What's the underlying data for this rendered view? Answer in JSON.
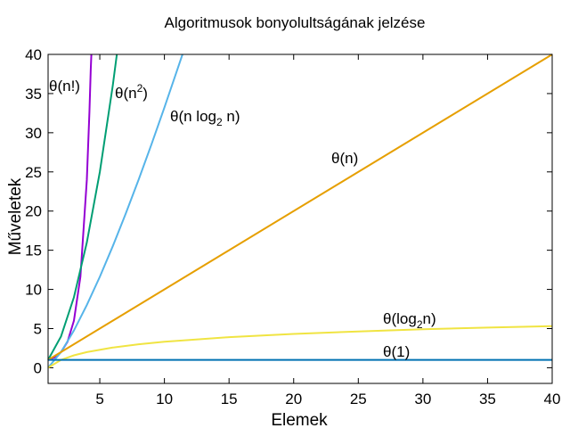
{
  "chart_data": {
    "type": "line",
    "title": "Algoritmusok bonyolultságának jelzése",
    "xlabel": "Elemek",
    "ylabel": "Műveletek",
    "xlim": [
      1,
      40
    ],
    "ylim": [
      -2,
      40
    ],
    "x_ticks": [
      5,
      10,
      15,
      20,
      25,
      30,
      35,
      40
    ],
    "y_ticks": [
      0,
      5,
      10,
      15,
      20,
      25,
      30,
      35,
      40
    ],
    "grid": false,
    "legend": "none",
    "series": [
      {
        "function": "factorial",
        "color": "#9400d3",
        "label": {
          "pre": "θ(n!)"
        },
        "points": [
          [
            1,
            1
          ],
          [
            1.5,
            1.33
          ],
          [
            2,
            2
          ],
          [
            2.5,
            3.32
          ],
          [
            3,
            6
          ],
          [
            3.5,
            11.63
          ],
          [
            4,
            24
          ],
          [
            4.2,
            32.6
          ],
          [
            4.3,
            38.1
          ],
          [
            4.35,
            40
          ]
        ]
      },
      {
        "function": "n^2",
        "color": "#009e73",
        "label": {
          "pre": "θ(n",
          "sup": "2",
          "post": ")"
        },
        "points": [
          [
            1,
            1
          ],
          [
            2,
            4
          ],
          [
            3,
            9
          ],
          [
            4,
            16
          ],
          [
            5,
            25
          ],
          [
            6,
            36
          ],
          [
            6.32,
            40
          ]
        ]
      },
      {
        "function": "n log2 n",
        "color": "#56b4e9",
        "label": {
          "pre": "θ(n log",
          "sub": "2",
          "post": " n)"
        },
        "points": [
          [
            1,
            0
          ],
          [
            2,
            2
          ],
          [
            3,
            4.75
          ],
          [
            4,
            8
          ],
          [
            5,
            11.61
          ],
          [
            6,
            15.51
          ],
          [
            7,
            19.65
          ],
          [
            8,
            24
          ],
          [
            9,
            28.53
          ],
          [
            10,
            33.22
          ],
          [
            11,
            38.05
          ],
          [
            11.4,
            40
          ]
        ]
      },
      {
        "function": "n",
        "color": "#e69f00",
        "label": {
          "pre": "θ(n)"
        },
        "points": [
          [
            1,
            1
          ],
          [
            40,
            40
          ]
        ]
      },
      {
        "function": "log2 n",
        "color": "#f0e442",
        "label": {
          "pre": "θ(log",
          "sub": "2",
          "post": "n)"
        },
        "points": [
          [
            1,
            0
          ],
          [
            2,
            1
          ],
          [
            3,
            1.58
          ],
          [
            4,
            2
          ],
          [
            6,
            2.58
          ],
          [
            8,
            3
          ],
          [
            10,
            3.32
          ],
          [
            15,
            3.91
          ],
          [
            20,
            4.32
          ],
          [
            25,
            4.64
          ],
          [
            30,
            4.91
          ],
          [
            35,
            5.13
          ],
          [
            40,
            5.32
          ]
        ]
      },
      {
        "function": "constant",
        "color": "#0072b2",
        "label": {
          "pre": "θ(1)"
        },
        "points": [
          [
            1,
            1
          ],
          [
            40,
            1
          ]
        ]
      }
    ]
  }
}
